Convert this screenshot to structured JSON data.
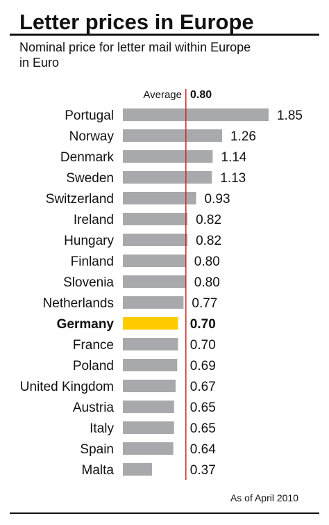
{
  "chart_data": {
    "type": "bar",
    "orientation": "horizontal",
    "title": "Letter prices in Europe",
    "subtitle_lines": [
      "Nominal price for letter mail within Europe",
      "in Euro"
    ],
    "average": {
      "label": "Average",
      "value_text": "0.80",
      "value": 0.8
    },
    "note": "As of April 2010",
    "categories": [
      "Portugal",
      "Norway",
      "Denmark",
      "Sweden",
      "Switzerland",
      "Ireland",
      "Hungary",
      "Finland",
      "Slovenia",
      "Netherlands",
      "Germany",
      "France",
      "Poland",
      "United Kingdom",
      "Austria",
      "Italy",
      "Spain",
      "Malta"
    ],
    "values": [
      1.85,
      1.26,
      1.14,
      1.13,
      0.93,
      0.82,
      0.82,
      0.8,
      0.8,
      0.77,
      0.7,
      0.7,
      0.69,
      0.67,
      0.65,
      0.65,
      0.64,
      0.37
    ],
    "value_labels": [
      "1.85",
      "1.26",
      "1.14",
      "1.13",
      "0.93",
      "0.82",
      "0.82",
      "0.80",
      "0.80",
      "0.77",
      "0.70",
      "0.70",
      "0.69",
      "0.67",
      "0.65",
      "0.65",
      "0.64",
      "0.37"
    ],
    "highlight": "Germany",
    "colors": {
      "bar": "#a8a9ad",
      "highlight": "#ffcc00",
      "average_line": "#cc2a2a",
      "rule": "#111111"
    }
  }
}
